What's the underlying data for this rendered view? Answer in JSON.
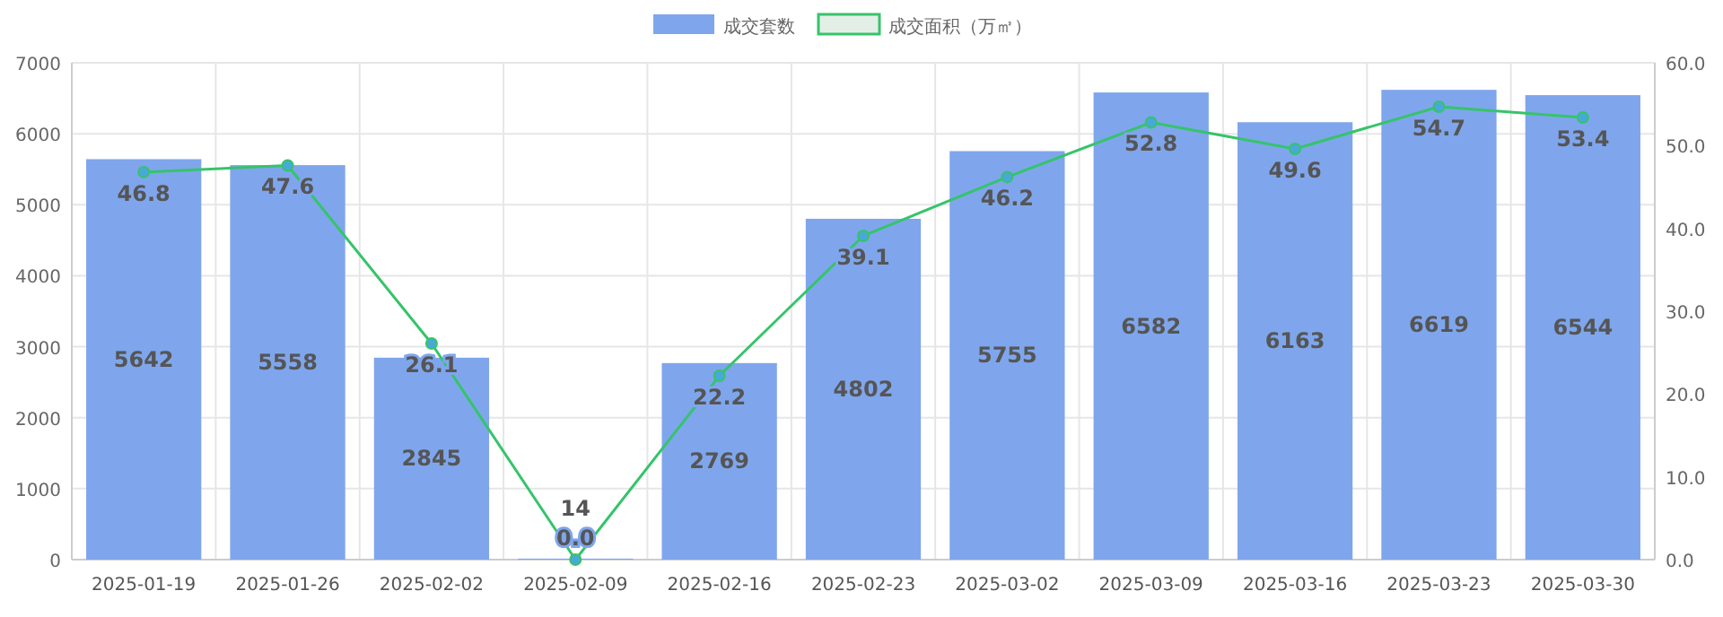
{
  "chart_data": {
    "type": "bar",
    "categories": [
      "2025-01-19",
      "2025-01-26",
      "2025-02-02",
      "2025-02-09",
      "2025-02-16",
      "2025-02-23",
      "2025-03-02",
      "2025-03-09",
      "2025-03-16",
      "2025-03-23",
      "2025-03-30"
    ],
    "series": [
      {
        "name": "成交套数",
        "color": "#7fa6ec",
        "values": [
          5642,
          5558,
          2845,
          14,
          2769,
          4802,
          5755,
          6582,
          6163,
          6619,
          6544
        ],
        "value_labels": [
          "5642",
          "5558",
          "2845",
          "14",
          "2769",
          "4802",
          "5755",
          "6582",
          "6163",
          "6619",
          "6544"
        ]
      },
      {
        "name": "成交面积（万㎡）",
        "type": "line",
        "axis": "y2",
        "color": "#35c46a",
        "marker": "circle",
        "values": [
          46.8,
          47.6,
          26.1,
          0.0,
          22.2,
          39.1,
          46.2,
          52.8,
          49.6,
          54.7,
          53.4
        ],
        "value_labels": [
          "46.8",
          "47.6",
          "26.1",
          "0.0",
          "22.2",
          "39.1",
          "46.2",
          "52.8",
          "49.6",
          "54.7",
          "53.4"
        ]
      }
    ],
    "ylim": [
      0,
      7000
    ],
    "yticks": [
      0,
      1000,
      2000,
      3000,
      4000,
      5000,
      6000,
      7000
    ],
    "y2lim": [
      0,
      60
    ],
    "y2ticks": [
      {
        "value": 0,
        "label": "0.0"
      },
      {
        "value": 10,
        "label": "10.0"
      },
      {
        "value": 20,
        "label": "20.0"
      },
      {
        "value": 30,
        "label": "30.0"
      },
      {
        "value": 40,
        "label": "40.0"
      },
      {
        "value": 50,
        "label": "50.0"
      },
      {
        "value": 60,
        "label": "60.0"
      }
    ],
    "grid": true,
    "legend": "top"
  }
}
